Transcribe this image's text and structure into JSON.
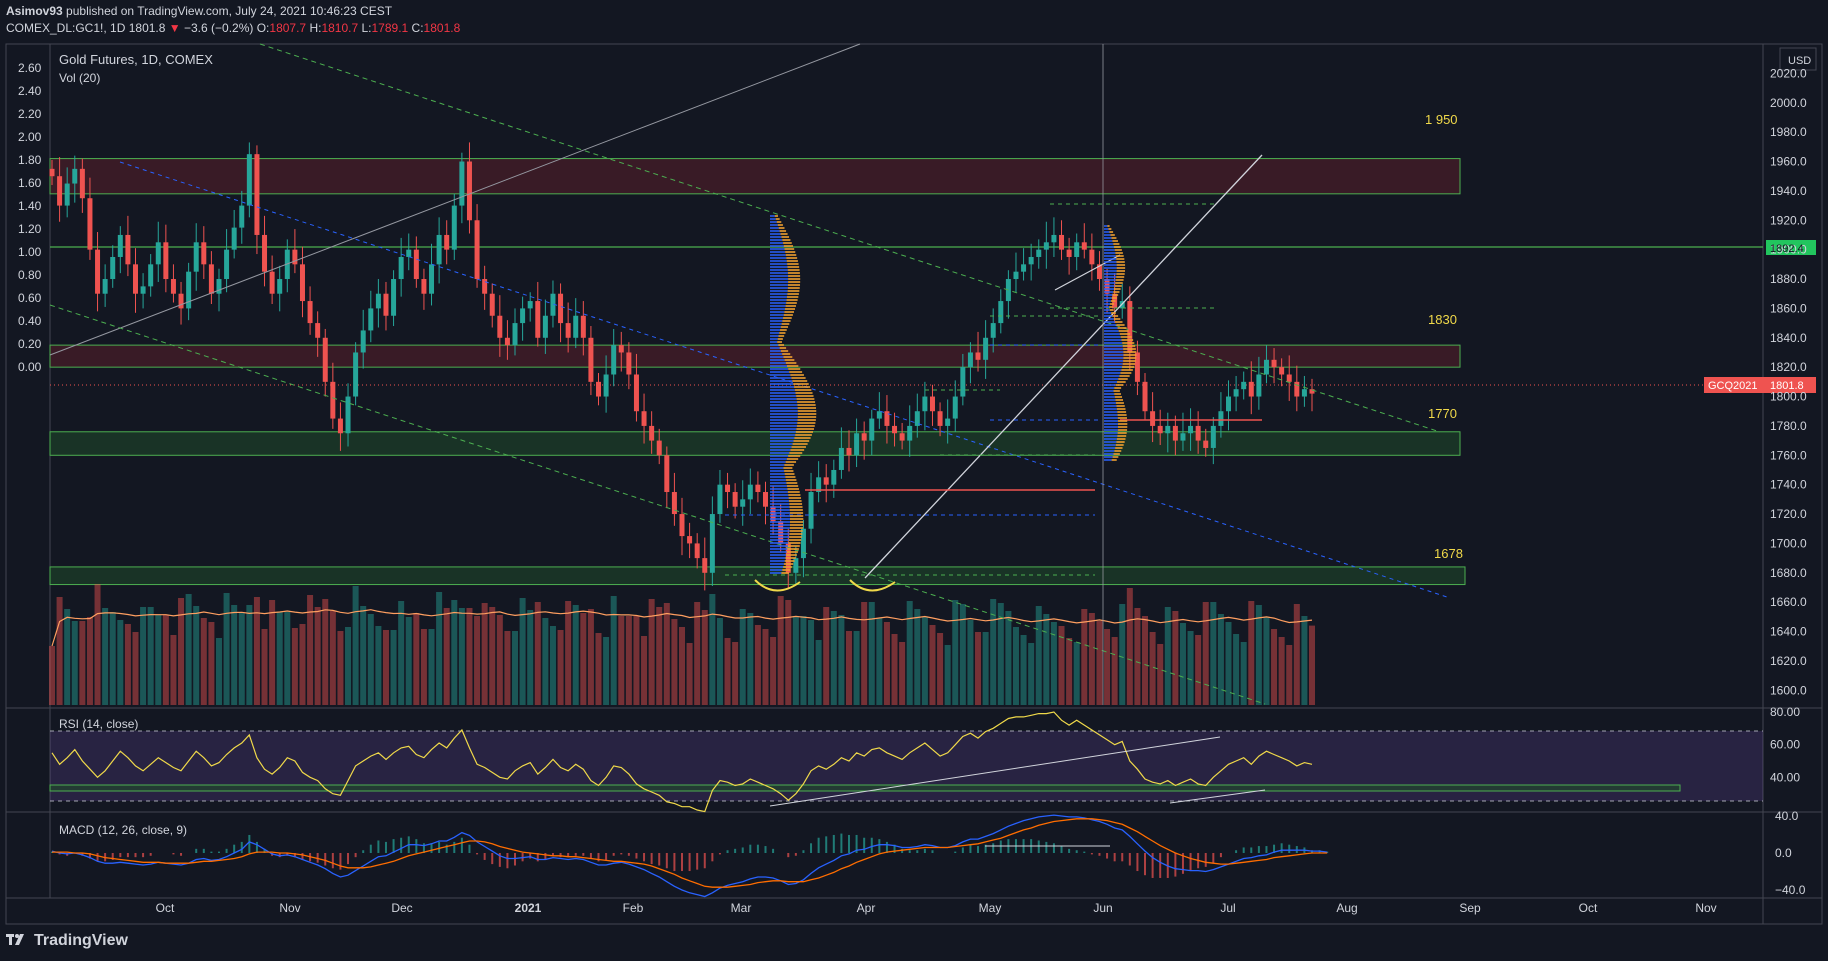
{
  "header": {
    "author": "Asimov93",
    "published": "published on TradingView.com, July 24, 2021 10:46:23 CEST",
    "symbol": "COMEX_DL:GC1!, 1D",
    "last": "1801.8",
    "change": "−3.6 (−0.2%)",
    "o_label": "O:",
    "o": "1807.7",
    "h_label": "H:",
    "h": "1810.7",
    "l_label": "L:",
    "l": "1789.1",
    "c_label": "C:",
    "c": "1801.8"
  },
  "footer": {
    "brand": "TradingView"
  },
  "colors": {
    "bg": "#131722",
    "up": "#26a69a",
    "down": "#ef5350",
    "rsi": "#f0d94a",
    "macd": "#2962ff",
    "signal": "#ff6d00",
    "zone_red": "#5a1f2a",
    "zone_green": "#1f4a2a"
  },
  "chart_data": [
    {
      "type": "candlestick",
      "title": "Gold Futures, 1D, COMEX",
      "indicator": "Vol (20)",
      "y_axis_unit": "USD",
      "y_ticks": [
        "2020.0",
        "2000.0",
        "1980.0",
        "1960.0",
        "1940.0",
        "1920.0",
        "1900.0",
        "1880.0",
        "1860.0",
        "1840.0",
        "1820.0",
        "1800.0",
        "1780.0",
        "1760.0",
        "1740.0",
        "1720.0",
        "1700.0",
        "1680.0",
        "1660.0",
        "1640.0",
        "1620.0",
        "1600.0"
      ],
      "left_ticks": [
        "2.60",
        "2.40",
        "2.20",
        "2.00",
        "1.80",
        "1.60",
        "1.40",
        "1.20",
        "1.00",
        "0.80",
        "0.60",
        "0.40",
        "0.20",
        "0.00"
      ],
      "x_ticks": [
        "Oct",
        "Nov",
        "Dec",
        "2021",
        "Feb",
        "Mar",
        "Apr",
        "May",
        "Jun",
        "Jul",
        "Aug",
        "Sep",
        "Oct",
        "Nov"
      ],
      "zone_labels": [
        "1 950",
        "1830",
        "1770",
        "1678"
      ],
      "price_tags": [
        {
          "label": "1892.4",
          "color": "#22c55e"
        },
        {
          "name": "GCQ2021",
          "label": "1801.8",
          "color": "#ef5350"
        }
      ],
      "close_path": [
        1950,
        1930,
        1945,
        1955,
        1935,
        1900,
        1870,
        1880,
        1895,
        1910,
        1890,
        1870,
        1875,
        1890,
        1905,
        1880,
        1870,
        1860,
        1885,
        1905,
        1890,
        1870,
        1880,
        1900,
        1915,
        1930,
        1965,
        1910,
        1885,
        1870,
        1880,
        1900,
        1890,
        1865,
        1850,
        1840,
        1810,
        1785,
        1775,
        1800,
        1830,
        1845,
        1860,
        1870,
        1855,
        1880,
        1895,
        1900,
        1880,
        1870,
        1890,
        1910,
        1900,
        1930,
        1960,
        1920,
        1880,
        1870,
        1855,
        1840,
        1835,
        1850,
        1860,
        1865,
        1840,
        1855,
        1870,
        1850,
        1840,
        1855,
        1840,
        1810,
        1800,
        1815,
        1835,
        1830,
        1815,
        1790,
        1780,
        1770,
        1760,
        1735,
        1720,
        1705,
        1700,
        1690,
        1680,
        1720,
        1740,
        1735,
        1725,
        1730,
        1740,
        1735,
        1725,
        1715,
        1700,
        1680,
        1690,
        1710,
        1735,
        1745,
        1740,
        1750,
        1765,
        1760,
        1775,
        1770,
        1785,
        1790,
        1780,
        1775,
        1770,
        1780,
        1790,
        1800,
        1790,
        1780,
        1785,
        1800,
        1820,
        1830,
        1825,
        1840,
        1850,
        1865,
        1880,
        1885,
        1890,
        1895,
        1900,
        1905,
        1910,
        1900,
        1895,
        1905,
        1900,
        1890,
        1880,
        1870,
        1860,
        1865,
        1830,
        1810,
        1790,
        1780,
        1775,
        1780,
        1770,
        1775,
        1780,
        1770,
        1765,
        1780,
        1790,
        1800,
        1805,
        1810,
        1800,
        1815,
        1825,
        1820,
        1815,
        1810,
        1800,
        1805,
        1802
      ]
    },
    {
      "type": "line",
      "title": "RSI (14, close)",
      "y_ticks": [
        "80.00",
        "60.00",
        "40.00"
      ],
      "x_range": [
        "2020-09-01",
        "2021-07-23"
      ],
      "values": [
        55,
        48,
        52,
        57,
        50,
        45,
        40,
        44,
        50,
        56,
        52,
        47,
        44,
        48,
        52,
        49,
        46,
        44,
        50,
        56,
        52,
        47,
        49,
        54,
        58,
        61,
        66,
        52,
        45,
        42,
        46,
        52,
        50,
        43,
        40,
        38,
        33,
        30,
        29,
        38,
        47,
        50,
        53,
        55,
        51,
        55,
        58,
        59,
        54,
        52,
        57,
        61,
        58,
        64,
        69,
        58,
        48,
        46,
        43,
        40,
        39,
        44,
        47,
        49,
        42,
        46,
        51,
        46,
        44,
        48,
        45,
        38,
        35,
        40,
        47,
        46,
        42,
        36,
        33,
        31,
        29,
        25,
        24,
        22,
        22,
        20,
        19,
        32,
        38,
        37,
        35,
        36,
        39,
        37,
        35,
        33,
        30,
        26,
        30,
        36,
        44,
        47,
        45,
        48,
        52,
        50,
        55,
        53,
        57,
        58,
        55,
        53,
        51,
        55,
        58,
        61,
        57,
        53,
        55,
        60,
        65,
        67,
        64,
        68,
        70,
        73,
        76,
        77,
        77,
        78,
        79,
        79,
        80,
        75,
        72,
        75,
        72,
        69,
        66,
        63,
        60,
        62,
        50,
        45,
        39,
        37,
        36,
        38,
        35,
        37,
        39,
        36,
        35,
        40,
        44,
        48,
        50,
        52,
        48,
        53,
        56,
        54,
        52,
        50,
        47,
        49,
        48
      ]
    },
    {
      "type": "line",
      "title": "MACD (12, 26, close, 9)",
      "y_ticks": [
        "40.0",
        "0.0",
        "−40.0"
      ],
      "x_range": [
        "2020-09-01",
        "2021-07-23"
      ],
      "macd": [
        2,
        0,
        -1,
        0,
        -2,
        -5,
        -9,
        -11,
        -11,
        -10,
        -11,
        -12,
        -13,
        -12,
        -10,
        -11,
        -12,
        -13,
        -11,
        -7,
        -6,
        -8,
        -7,
        -4,
        0,
        4,
        12,
        9,
        4,
        -1,
        -3,
        -2,
        -4,
        -7,
        -10,
        -13,
        -17,
        -22,
        -26,
        -24,
        -19,
        -14,
        -9,
        -4,
        -3,
        1,
        5,
        9,
        9,
        8,
        10,
        13,
        13,
        17,
        22,
        19,
        12,
        7,
        2,
        -3,
        -6,
        -6,
        -5,
        -4,
        -7,
        -7,
        -5,
        -6,
        -7,
        -6,
        -7,
        -10,
        -13,
        -13,
        -11,
        -10,
        -12,
        -15,
        -18,
        -22,
        -26,
        -31,
        -36,
        -40,
        -43,
        -45,
        -47,
        -43,
        -38,
        -35,
        -33,
        -31,
        -28,
        -26,
        -26,
        -27,
        -30,
        -34,
        -33,
        -29,
        -22,
        -16,
        -12,
        -8,
        -3,
        -1,
        3,
        4,
        7,
        9,
        9,
        8,
        6,
        6,
        7,
        9,
        8,
        6,
        6,
        8,
        12,
        15,
        15,
        18,
        21,
        25,
        29,
        32,
        35,
        37,
        39,
        40,
        41,
        40,
        39,
        39,
        38,
        36,
        34,
        31,
        27,
        25,
        18,
        10,
        2,
        -5,
        -10,
        -14,
        -17,
        -18,
        -19,
        -19,
        -20,
        -18,
        -15,
        -12,
        -9,
        -6,
        -5,
        -3,
        -2,
        1,
        3,
        3,
        3,
        3,
        2,
        2,
        1
      ],
      "signal": [
        1,
        1,
        1,
        0,
        0,
        -1,
        -3,
        -5,
        -6,
        -7,
        -8,
        -9,
        -10,
        -10,
        -10,
        -11,
        -11,
        -11,
        -11,
        -10,
        -9,
        -9,
        -8,
        -7,
        -6,
        -4,
        -1,
        1,
        1,
        1,
        0,
        0,
        -1,
        -2,
        -4,
        -6,
        -8,
        -11,
        -14,
        -16,
        -16,
        -16,
        -15,
        -13,
        -11,
        -9,
        -6,
        -3,
        -1,
        1,
        3,
        5,
        7,
        9,
        11,
        13,
        13,
        12,
        10,
        7,
        5,
        3,
        1,
        0,
        -1,
        -2,
        -3,
        -3,
        -4,
        -4,
        -5,
        -6,
        -7,
        -8,
        -9,
        -9,
        -10,
        -11,
        -12,
        -14,
        -17,
        -20,
        -23,
        -27,
        -30,
        -33,
        -36,
        -37,
        -37,
        -37,
        -36,
        -35,
        -34,
        -32,
        -31,
        -30,
        -30,
        -31,
        -31,
        -31,
        -29,
        -27,
        -24,
        -21,
        -17,
        -14,
        -10,
        -7,
        -4,
        -1,
        1,
        2,
        3,
        4,
        5,
        6,
        6,
        6,
        6,
        7,
        8,
        9,
        10,
        12,
        14,
        16,
        19,
        22,
        25,
        27,
        30,
        32,
        34,
        35,
        36,
        37,
        37,
        37,
        36,
        35,
        33,
        31,
        27,
        23,
        18,
        13,
        8,
        4,
        0,
        -3,
        -6,
        -8,
        -10,
        -11,
        -12,
        -12,
        -11,
        -10,
        -9,
        -8,
        -7,
        -5,
        -4,
        -3,
        -2,
        -1,
        0,
        0,
        0
      ]
    }
  ]
}
